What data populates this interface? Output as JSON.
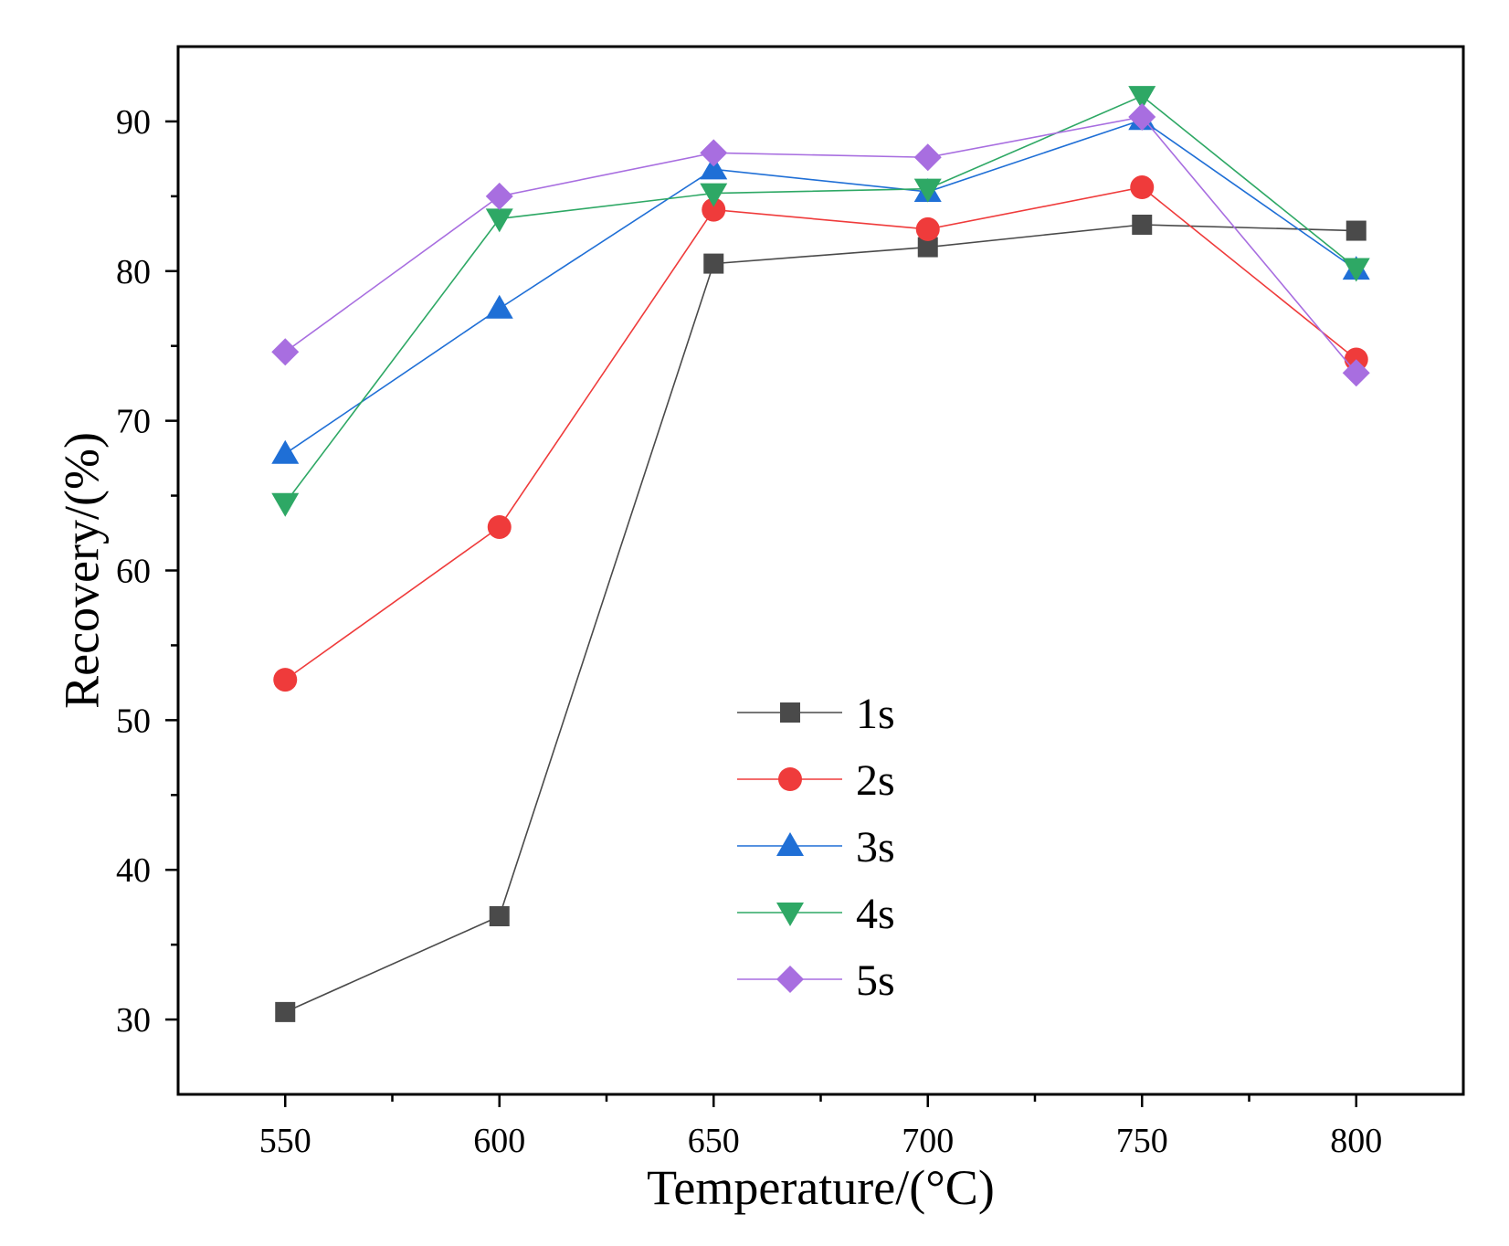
{
  "chart_data": {
    "type": "line",
    "title": "",
    "xlabel": "Temperature/(°C)",
    "ylabel": "Recovery/(%)",
    "x": [
      550,
      600,
      650,
      700,
      750,
      800
    ],
    "x_ticks": [
      550,
      600,
      650,
      700,
      750,
      800
    ],
    "y_ticks": [
      30,
      40,
      50,
      60,
      70,
      80,
      90
    ],
    "xlim": [
      525,
      825
    ],
    "ylim": [
      25,
      95
    ],
    "grid": false,
    "legend_position": "center",
    "series": [
      {
        "name": "1s",
        "marker": "square",
        "color": "#4a4a4a",
        "values": [
          30.5,
          36.9,
          80.5,
          81.6,
          83.1,
          82.7
        ]
      },
      {
        "name": "2s",
        "marker": "circle",
        "color": "#ef3b3b",
        "values": [
          52.7,
          62.9,
          84.1,
          82.8,
          85.6,
          74.1
        ]
      },
      {
        "name": "3s",
        "marker": "triangle-up",
        "color": "#1f6fd6",
        "values": [
          67.8,
          77.5,
          86.8,
          85.3,
          90.1,
          80.1
        ]
      },
      {
        "name": "4s",
        "marker": "triangle-down",
        "color": "#2ea865",
        "values": [
          64.5,
          83.5,
          85.2,
          85.5,
          91.7,
          80.2
        ]
      },
      {
        "name": "5s",
        "marker": "diamond",
        "color": "#a86ee0",
        "values": [
          74.6,
          85.0,
          87.9,
          87.6,
          90.3,
          73.2
        ]
      }
    ]
  }
}
